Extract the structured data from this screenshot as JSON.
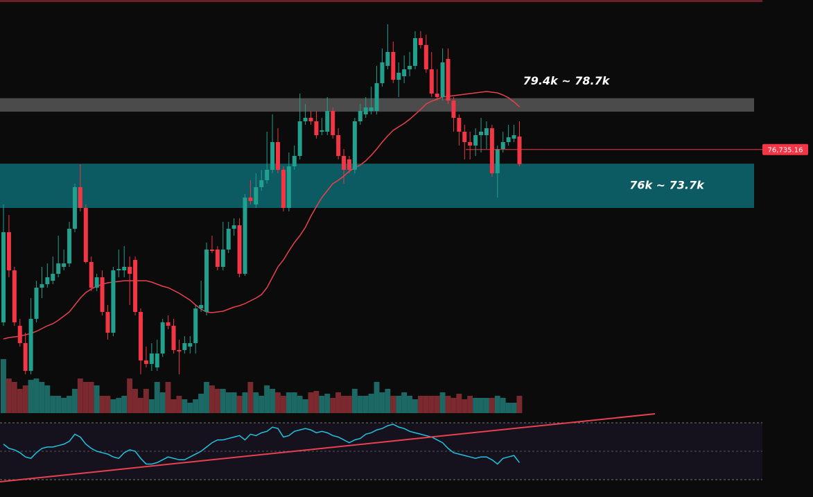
{
  "chart_data": {
    "type": "candlestick",
    "ylim": [
      65060,
      84500
    ],
    "up_color": "#22a08e",
    "down_color": "#f23645",
    "candles": [
      [
        67760,
        73880,
        67580,
        72440
      ],
      [
        72440,
        73340,
        70100,
        70460
      ],
      [
        70460,
        70640,
        67580,
        67760
      ],
      [
        67580,
        67940,
        66500,
        66680
      ],
      [
        66680,
        67220,
        65060,
        65240
      ],
      [
        65240,
        69020,
        65060,
        67940
      ],
      [
        67940,
        69920,
        67760,
        69560
      ],
      [
        69560,
        70640,
        69020,
        69740
      ],
      [
        69740,
        70820,
        69560,
        70100
      ],
      [
        69920,
        71180,
        69740,
        70280
      ],
      [
        70280,
        72260,
        70100,
        70820
      ],
      [
        70640,
        71540,
        70460,
        70820
      ],
      [
        70820,
        72980,
        70640,
        72620
      ],
      [
        72620,
        74960,
        72440,
        74780
      ],
      [
        74780,
        75968,
        73520,
        73700
      ],
      [
        73700,
        73880,
        70820,
        70892
      ],
      [
        70892,
        71180,
        69380,
        69560
      ],
      [
        69560,
        70280,
        69380,
        70100
      ],
      [
        70100,
        70460,
        68120,
        68300
      ],
      [
        68300,
        68660,
        66860,
        67220
      ],
      [
        67220,
        70640,
        67040,
        70460
      ],
      [
        70460,
        71540,
        70100,
        70532
      ],
      [
        70460,
        71720,
        70100,
        70640
      ],
      [
        70640,
        71180,
        68660,
        70280
      ],
      [
        71000,
        71180,
        68120,
        68300
      ],
      [
        68300,
        68480,
        65060,
        65780
      ],
      [
        65780,
        66500,
        65420,
        65600
      ],
      [
        65600,
        66680,
        65240,
        66140
      ],
      [
        65420,
        66860,
        65240,
        66140
      ],
      [
        66140,
        67940,
        65960,
        67760
      ],
      [
        67760,
        68120,
        67400,
        67580
      ],
      [
        67580,
        67940,
        66140,
        66320
      ],
      [
        66320,
        66860,
        65060,
        66248
      ],
      [
        66320,
        67040,
        66140,
        66680
      ],
      [
        66500,
        67040,
        66140,
        66680
      ],
      [
        66680,
        68660,
        66140,
        68480
      ],
      [
        68480,
        69920,
        68300,
        68660
      ],
      [
        68300,
        71900,
        68120,
        71540
      ],
      [
        71540,
        72260,
        71360,
        71468
      ],
      [
        71540,
        71720,
        70460,
        70640
      ],
      [
        70640,
        72980,
        70460,
        71540
      ],
      [
        71540,
        72980,
        71360,
        72620
      ],
      [
        72620,
        73160,
        72260,
        72800
      ],
      [
        72800,
        73160,
        70100,
        70280
      ],
      [
        70280,
        74420,
        70172,
        74240
      ],
      [
        74240,
        75140,
        73880,
        74060
      ],
      [
        73880,
        75500,
        73700,
        74780
      ],
      [
        74780,
        75680,
        74600,
        75140
      ],
      [
        75140,
        77660,
        74960,
        75680
      ],
      [
        75680,
        78560,
        75500,
        77120
      ],
      [
        77120,
        77840,
        75500,
        75680
      ],
      [
        75680,
        75860,
        73520,
        73700
      ],
      [
        73700,
        76580,
        73520,
        75860
      ],
      [
        75860,
        76940,
        75680,
        76400
      ],
      [
        76400,
        79640,
        76220,
        78200
      ],
      [
        78200,
        79100,
        78020,
        78380
      ],
      [
        78380,
        78740,
        78020,
        78200
      ],
      [
        78200,
        78740,
        77300,
        77480
      ],
      [
        77660,
        78380,
        77480,
        77732
      ],
      [
        77660,
        79460,
        77480,
        78740
      ],
      [
        78740,
        78920,
        77300,
        77480
      ],
      [
        77480,
        77840,
        76220,
        76400
      ],
      [
        76400,
        76760,
        74960,
        75680
      ],
      [
        76220,
        76400,
        75500,
        75680
      ],
      [
        75680,
        78380,
        75500,
        78200
      ],
      [
        78200,
        79100,
        78020,
        78740
      ],
      [
        78560,
        79460,
        78380,
        78920
      ],
      [
        78740,
        80000,
        78560,
        78920
      ],
      [
        78740,
        81080,
        78560,
        80180
      ],
      [
        80180,
        81980,
        80000,
        81260
      ],
      [
        81080,
        83240,
        80900,
        81800
      ],
      [
        81800,
        82340,
        80180,
        80360
      ],
      [
        80360,
        81260,
        79460,
        80720
      ],
      [
        80540,
        81620,
        80180,
        80900
      ],
      [
        80900,
        81800,
        80540,
        81080
      ],
      [
        81080,
        82880,
        80900,
        82520
      ],
      [
        82520,
        82880,
        81980,
        82160
      ],
      [
        82160,
        82700,
        80720,
        80900
      ],
      [
        80900,
        81800,
        79460,
        79640
      ],
      [
        79640,
        80900,
        79280,
        79460
      ],
      [
        79460,
        81980,
        79280,
        81260
      ],
      [
        81440,
        81980,
        79100,
        79280
      ],
      [
        79280,
        79460,
        77660,
        78380
      ],
      [
        78380,
        78560,
        76940,
        77660
      ],
      [
        77660,
        78020,
        76220,
        77120
      ],
      [
        77120,
        77660,
        76220,
        76940
      ],
      [
        76940,
        77840,
        76400,
        77480
      ],
      [
        77480,
        78380,
        76580,
        77660
      ],
      [
        77480,
        78200,
        76760,
        77840
      ],
      [
        77840,
        78020,
        75320,
        75500
      ],
      [
        75500,
        76940,
        74240,
        76760
      ],
      [
        76760,
        77660,
        76580,
        77120
      ],
      [
        77120,
        78020,
        76940,
        77372
      ],
      [
        77300,
        78020,
        77120,
        77480
      ],
      [
        77408,
        78200,
        75860,
        75968
      ]
    ],
    "ma": {
      "color": "#e8424f",
      "values": [
        66896,
        66968,
        67004,
        67040,
        67112,
        67184,
        67292,
        67436,
        67580,
        67688,
        67868,
        68084,
        68300,
        68660,
        69020,
        69308,
        69488,
        69632,
        69740,
        69812,
        69848,
        69884,
        69920,
        69920,
        69920,
        69920,
        69920,
        69848,
        69740,
        69632,
        69560,
        69416,
        69272,
        69092,
        68912,
        68660,
        68444,
        68300,
        68264,
        68300,
        68336,
        68444,
        68552,
        68624,
        68732,
        68876,
        69020,
        69200,
        69560,
        70100,
        70640,
        71000,
        71468,
        71900,
        72260,
        72692,
        73268,
        73772,
        74240,
        74600,
        74960,
        75140,
        75356,
        75608,
        75788,
        75932,
        76148,
        76436,
        76760,
        77120,
        77444,
        77732,
        77912,
        78092,
        78308,
        78560,
        78812,
        79100,
        79244,
        79352,
        79460,
        79496,
        79532,
        79568,
        79604,
        79640,
        79676,
        79712,
        79748,
        79712,
        79676,
        79568,
        79424,
        79208,
        78956
      ]
    },
    "zones": [
      {
        "label": "79.4k ~ 78.7k",
        "top": 79400,
        "bottom": 78700,
        "color": "#4b4b4b"
      },
      {
        "label": "76k ~ 73.7k",
        "top": 76000,
        "bottom": 73700,
        "color": "#0c5b62"
      }
    ],
    "price_line": {
      "value": 76735.16,
      "label": "76,735.16",
      "color": "#f23645"
    },
    "volume": {
      "ylim": [
        0,
        80
      ],
      "up_color": "#1c6864",
      "down_color": "#7a2a2e",
      "values": [
        78,
        50,
        45,
        35,
        40,
        48,
        50,
        45,
        40,
        25,
        25,
        22,
        25,
        35,
        50,
        45,
        45,
        40,
        25,
        25,
        20,
        22,
        25,
        50,
        35,
        22,
        35,
        20,
        45,
        30,
        45,
        20,
        25,
        20,
        15,
        20,
        28,
        45,
        40,
        35,
        35,
        30,
        30,
        25,
        30,
        45,
        30,
        25,
        40,
        35,
        30,
        25,
        30,
        30,
        25,
        20,
        30,
        32,
        25,
        28,
        22,
        30,
        25,
        25,
        35,
        25,
        25,
        28,
        45,
        30,
        35,
        25,
        25,
        30,
        25,
        20,
        25,
        25,
        25,
        25,
        30,
        25,
        22,
        28,
        20,
        25,
        22,
        22,
        22,
        22,
        25,
        22,
        15,
        15,
        25
      ]
    },
    "rsi": {
      "ylim": [
        30,
        70
      ],
      "color": "#22c3e0",
      "values": [
        55,
        52,
        51,
        49,
        46,
        45,
        49,
        52,
        53,
        53,
        54,
        55,
        57,
        62,
        60,
        55,
        52,
        50,
        49,
        48,
        46,
        45,
        49,
        51,
        50,
        45,
        41,
        41,
        42,
        44,
        46,
        45,
        44,
        44,
        46,
        48,
        50,
        53,
        56,
        58,
        58,
        59,
        60,
        61,
        58,
        62,
        61,
        63,
        64,
        67,
        66,
        60,
        61,
        64,
        65,
        66,
        65,
        63,
        64,
        63,
        61,
        60,
        58,
        56,
        58,
        59,
        62,
        63,
        65,
        66,
        68,
        69,
        67,
        66,
        64,
        63,
        62,
        61,
        60,
        58,
        56,
        52,
        49,
        48,
        47,
        46,
        45,
        46,
        46,
        44,
        41,
        45,
        46,
        47,
        42
      ]
    }
  }
}
